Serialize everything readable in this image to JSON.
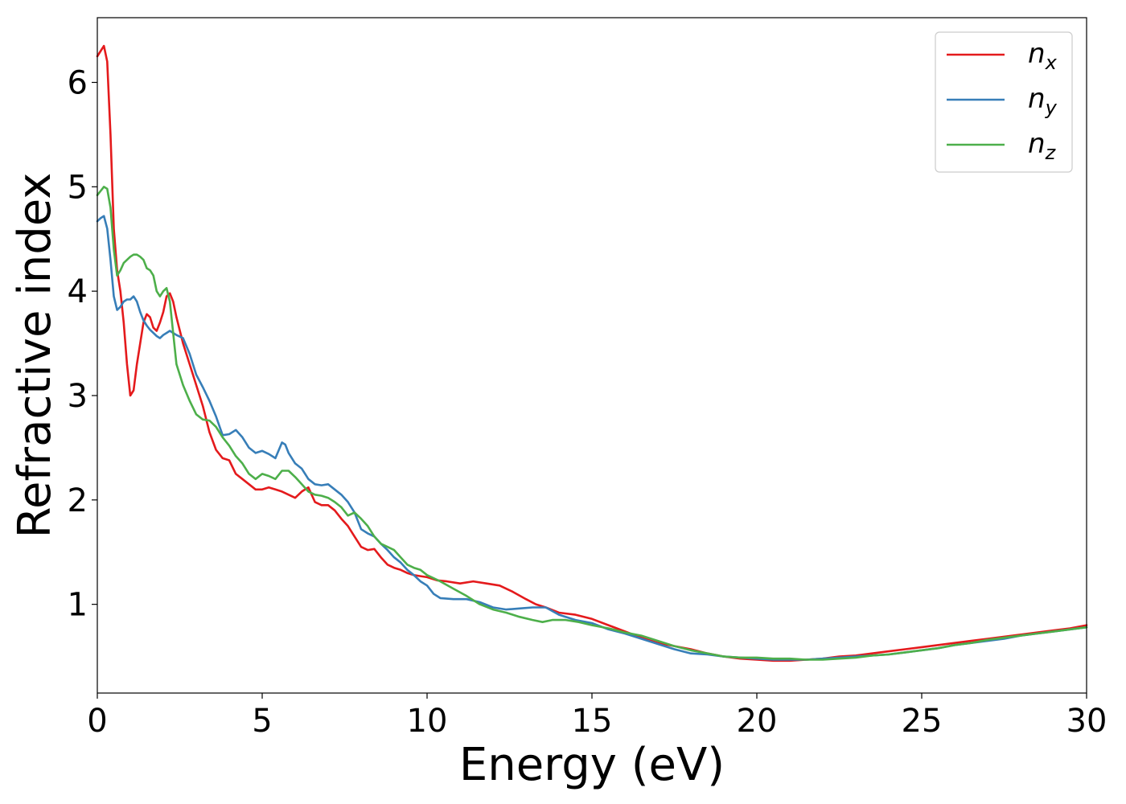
{
  "chart_data": {
    "type": "line",
    "xlabel": "Energy (eV)",
    "ylabel": "Refractive index",
    "xlim": [
      0,
      30
    ],
    "ylim": [
      0.15,
      6.62
    ],
    "xticks": [
      0,
      5,
      10,
      15,
      20,
      25,
      30
    ],
    "yticks": [
      1,
      2,
      3,
      4,
      5,
      6
    ],
    "grid": false,
    "legend_position": "top-right",
    "series": [
      {
        "name_base": "n",
        "name_sub": "x",
        "color": "#e41a1c",
        "points": [
          [
            0,
            6.25
          ],
          [
            0.1,
            6.3
          ],
          [
            0.2,
            6.35
          ],
          [
            0.3,
            6.2
          ],
          [
            0.4,
            5.5
          ],
          [
            0.5,
            4.6
          ],
          [
            0.6,
            4.2
          ],
          [
            0.7,
            4.0
          ],
          [
            0.8,
            3.7
          ],
          [
            0.9,
            3.3
          ],
          [
            1.0,
            3.0
          ],
          [
            1.1,
            3.05
          ],
          [
            1.2,
            3.3
          ],
          [
            1.3,
            3.5
          ],
          [
            1.4,
            3.7
          ],
          [
            1.5,
            3.78
          ],
          [
            1.6,
            3.75
          ],
          [
            1.7,
            3.65
          ],
          [
            1.8,
            3.62
          ],
          [
            1.9,
            3.7
          ],
          [
            2.0,
            3.8
          ],
          [
            2.1,
            3.95
          ],
          [
            2.2,
            3.98
          ],
          [
            2.3,
            3.9
          ],
          [
            2.4,
            3.75
          ],
          [
            2.6,
            3.5
          ],
          [
            2.8,
            3.3
          ],
          [
            3.0,
            3.1
          ],
          [
            3.2,
            2.9
          ],
          [
            3.4,
            2.65
          ],
          [
            3.6,
            2.48
          ],
          [
            3.8,
            2.4
          ],
          [
            4.0,
            2.38
          ],
          [
            4.2,
            2.25
          ],
          [
            4.4,
            2.2
          ],
          [
            4.6,
            2.15
          ],
          [
            4.8,
            2.1
          ],
          [
            5.0,
            2.1
          ],
          [
            5.2,
            2.12
          ],
          [
            5.4,
            2.1
          ],
          [
            5.6,
            2.08
          ],
          [
            5.8,
            2.05
          ],
          [
            6.0,
            2.02
          ],
          [
            6.2,
            2.08
          ],
          [
            6.4,
            2.12
          ],
          [
            6.6,
            1.98
          ],
          [
            6.8,
            1.95
          ],
          [
            7.0,
            1.95
          ],
          [
            7.2,
            1.9
          ],
          [
            7.4,
            1.82
          ],
          [
            7.6,
            1.75
          ],
          [
            7.8,
            1.65
          ],
          [
            8.0,
            1.55
          ],
          [
            8.2,
            1.52
          ],
          [
            8.4,
            1.53
          ],
          [
            8.6,
            1.45
          ],
          [
            8.8,
            1.38
          ],
          [
            9.0,
            1.35
          ],
          [
            9.2,
            1.33
          ],
          [
            9.4,
            1.3
          ],
          [
            9.6,
            1.28
          ],
          [
            9.8,
            1.27
          ],
          [
            10.0,
            1.26
          ],
          [
            10.3,
            1.23
          ],
          [
            10.6,
            1.22
          ],
          [
            11.0,
            1.2
          ],
          [
            11.4,
            1.22
          ],
          [
            11.8,
            1.2
          ],
          [
            12.2,
            1.18
          ],
          [
            12.6,
            1.12
          ],
          [
            13.0,
            1.05
          ],
          [
            13.3,
            1.0
          ],
          [
            13.6,
            0.97
          ],
          [
            14.0,
            0.92
          ],
          [
            14.5,
            0.9
          ],
          [
            15.0,
            0.86
          ],
          [
            15.5,
            0.8
          ],
          [
            16.0,
            0.74
          ],
          [
            16.5,
            0.68
          ],
          [
            17.0,
            0.63
          ],
          [
            17.5,
            0.6
          ],
          [
            18.0,
            0.57
          ],
          [
            18.5,
            0.53
          ],
          [
            19.0,
            0.5
          ],
          [
            19.5,
            0.48
          ],
          [
            20.0,
            0.47
          ],
          [
            20.5,
            0.46
          ],
          [
            21.0,
            0.46
          ],
          [
            21.5,
            0.47
          ],
          [
            22.0,
            0.48
          ],
          [
            22.5,
            0.5
          ],
          [
            23.0,
            0.51
          ],
          [
            23.5,
            0.53
          ],
          [
            24.0,
            0.55
          ],
          [
            24.5,
            0.57
          ],
          [
            25.0,
            0.59
          ],
          [
            25.5,
            0.61
          ],
          [
            26.0,
            0.63
          ],
          [
            26.5,
            0.65
          ],
          [
            27.0,
            0.67
          ],
          [
            27.5,
            0.69
          ],
          [
            28.0,
            0.71
          ],
          [
            28.5,
            0.73
          ],
          [
            29.0,
            0.75
          ],
          [
            29.5,
            0.77
          ],
          [
            30.0,
            0.8
          ]
        ]
      },
      {
        "name_base": "n",
        "name_sub": "y",
        "color": "#377eb8",
        "points": [
          [
            0,
            4.67
          ],
          [
            0.1,
            4.7
          ],
          [
            0.2,
            4.72
          ],
          [
            0.3,
            4.6
          ],
          [
            0.4,
            4.3
          ],
          [
            0.5,
            3.95
          ],
          [
            0.6,
            3.82
          ],
          [
            0.7,
            3.85
          ],
          [
            0.8,
            3.9
          ],
          [
            0.9,
            3.92
          ],
          [
            1.0,
            3.92
          ],
          [
            1.1,
            3.95
          ],
          [
            1.2,
            3.9
          ],
          [
            1.3,
            3.8
          ],
          [
            1.4,
            3.72
          ],
          [
            1.5,
            3.67
          ],
          [
            1.6,
            3.63
          ],
          [
            1.7,
            3.6
          ],
          [
            1.8,
            3.57
          ],
          [
            1.9,
            3.55
          ],
          [
            2.0,
            3.58
          ],
          [
            2.1,
            3.6
          ],
          [
            2.2,
            3.62
          ],
          [
            2.3,
            3.6
          ],
          [
            2.4,
            3.58
          ],
          [
            2.6,
            3.55
          ],
          [
            2.8,
            3.4
          ],
          [
            3.0,
            3.2
          ],
          [
            3.2,
            3.08
          ],
          [
            3.4,
            2.95
          ],
          [
            3.6,
            2.8
          ],
          [
            3.8,
            2.62
          ],
          [
            4.0,
            2.63
          ],
          [
            4.2,
            2.67
          ],
          [
            4.4,
            2.6
          ],
          [
            4.6,
            2.5
          ],
          [
            4.8,
            2.45
          ],
          [
            5.0,
            2.47
          ],
          [
            5.2,
            2.44
          ],
          [
            5.4,
            2.4
          ],
          [
            5.6,
            2.55
          ],
          [
            5.7,
            2.53
          ],
          [
            5.8,
            2.45
          ],
          [
            6.0,
            2.35
          ],
          [
            6.2,
            2.3
          ],
          [
            6.4,
            2.2
          ],
          [
            6.6,
            2.15
          ],
          [
            6.8,
            2.14
          ],
          [
            7.0,
            2.15
          ],
          [
            7.2,
            2.1
          ],
          [
            7.4,
            2.05
          ],
          [
            7.6,
            1.98
          ],
          [
            7.8,
            1.88
          ],
          [
            8.0,
            1.72
          ],
          [
            8.2,
            1.68
          ],
          [
            8.4,
            1.65
          ],
          [
            8.6,
            1.58
          ],
          [
            8.8,
            1.52
          ],
          [
            9.0,
            1.45
          ],
          [
            9.2,
            1.4
          ],
          [
            9.4,
            1.33
          ],
          [
            9.6,
            1.28
          ],
          [
            9.8,
            1.22
          ],
          [
            10.0,
            1.18
          ],
          [
            10.2,
            1.1
          ],
          [
            10.4,
            1.06
          ],
          [
            10.8,
            1.05
          ],
          [
            11.2,
            1.05
          ],
          [
            11.6,
            1.02
          ],
          [
            12.0,
            0.97
          ],
          [
            12.4,
            0.95
          ],
          [
            12.8,
            0.96
          ],
          [
            13.2,
            0.97
          ],
          [
            13.6,
            0.97
          ],
          [
            14.0,
            0.9
          ],
          [
            14.5,
            0.85
          ],
          [
            15.0,
            0.82
          ],
          [
            15.5,
            0.76
          ],
          [
            16.0,
            0.72
          ],
          [
            16.5,
            0.67
          ],
          [
            17.0,
            0.62
          ],
          [
            17.5,
            0.57
          ],
          [
            18.0,
            0.53
          ],
          [
            18.5,
            0.52
          ],
          [
            19.0,
            0.5
          ],
          [
            19.5,
            0.49
          ],
          [
            20.0,
            0.48
          ],
          [
            20.5,
            0.47
          ],
          [
            21.0,
            0.47
          ],
          [
            21.5,
            0.47
          ],
          [
            22.0,
            0.48
          ],
          [
            22.5,
            0.49
          ],
          [
            23.0,
            0.5
          ],
          [
            23.5,
            0.51
          ],
          [
            24.0,
            0.52
          ],
          [
            24.5,
            0.54
          ],
          [
            25.0,
            0.56
          ],
          [
            25.5,
            0.58
          ],
          [
            26.0,
            0.61
          ],
          [
            26.5,
            0.63
          ],
          [
            27.0,
            0.65
          ],
          [
            27.5,
            0.67
          ],
          [
            28.0,
            0.7
          ],
          [
            28.5,
            0.72
          ],
          [
            29.0,
            0.74
          ],
          [
            29.5,
            0.76
          ],
          [
            30.0,
            0.78
          ]
        ]
      },
      {
        "name_base": "n",
        "name_sub": "z",
        "color": "#4daf4a",
        "points": [
          [
            0,
            4.92
          ],
          [
            0.1,
            4.96
          ],
          [
            0.2,
            5.0
          ],
          [
            0.3,
            4.98
          ],
          [
            0.4,
            4.8
          ],
          [
            0.5,
            4.4
          ],
          [
            0.6,
            4.15
          ],
          [
            0.7,
            4.2
          ],
          [
            0.8,
            4.27
          ],
          [
            0.9,
            4.3
          ],
          [
            1.0,
            4.33
          ],
          [
            1.1,
            4.35
          ],
          [
            1.2,
            4.35
          ],
          [
            1.3,
            4.33
          ],
          [
            1.4,
            4.3
          ],
          [
            1.5,
            4.22
          ],
          [
            1.6,
            4.2
          ],
          [
            1.7,
            4.15
          ],
          [
            1.8,
            4.0
          ],
          [
            1.9,
            3.95
          ],
          [
            2.0,
            4.0
          ],
          [
            2.1,
            4.03
          ],
          [
            2.2,
            3.9
          ],
          [
            2.3,
            3.6
          ],
          [
            2.4,
            3.3
          ],
          [
            2.6,
            3.1
          ],
          [
            2.8,
            2.95
          ],
          [
            3.0,
            2.82
          ],
          [
            3.2,
            2.77
          ],
          [
            3.4,
            2.76
          ],
          [
            3.6,
            2.7
          ],
          [
            3.8,
            2.6
          ],
          [
            4.0,
            2.52
          ],
          [
            4.2,
            2.42
          ],
          [
            4.4,
            2.35
          ],
          [
            4.6,
            2.25
          ],
          [
            4.8,
            2.2
          ],
          [
            5.0,
            2.25
          ],
          [
            5.2,
            2.23
          ],
          [
            5.4,
            2.2
          ],
          [
            5.6,
            2.28
          ],
          [
            5.8,
            2.28
          ],
          [
            6.0,
            2.22
          ],
          [
            6.2,
            2.15
          ],
          [
            6.4,
            2.08
          ],
          [
            6.6,
            2.05
          ],
          [
            6.8,
            2.04
          ],
          [
            7.0,
            2.02
          ],
          [
            7.2,
            1.98
          ],
          [
            7.4,
            1.93
          ],
          [
            7.6,
            1.85
          ],
          [
            7.8,
            1.88
          ],
          [
            8.0,
            1.82
          ],
          [
            8.2,
            1.75
          ],
          [
            8.4,
            1.65
          ],
          [
            8.6,
            1.58
          ],
          [
            8.8,
            1.55
          ],
          [
            9.0,
            1.52
          ],
          [
            9.2,
            1.45
          ],
          [
            9.4,
            1.38
          ],
          [
            9.6,
            1.35
          ],
          [
            9.8,
            1.33
          ],
          [
            10.0,
            1.28
          ],
          [
            10.4,
            1.22
          ],
          [
            10.8,
            1.15
          ],
          [
            11.2,
            1.08
          ],
          [
            11.6,
            1.0
          ],
          [
            12.0,
            0.95
          ],
          [
            12.4,
            0.92
          ],
          [
            12.8,
            0.88
          ],
          [
            13.2,
            0.85
          ],
          [
            13.5,
            0.83
          ],
          [
            13.8,
            0.85
          ],
          [
            14.2,
            0.85
          ],
          [
            14.6,
            0.83
          ],
          [
            15.0,
            0.8
          ],
          [
            15.5,
            0.77
          ],
          [
            16.0,
            0.73
          ],
          [
            16.5,
            0.7
          ],
          [
            17.0,
            0.65
          ],
          [
            17.5,
            0.6
          ],
          [
            18.0,
            0.56
          ],
          [
            18.5,
            0.53
          ],
          [
            19.0,
            0.5
          ],
          [
            19.5,
            0.49
          ],
          [
            20.0,
            0.49
          ],
          [
            20.5,
            0.48
          ],
          [
            21.0,
            0.48
          ],
          [
            21.5,
            0.47
          ],
          [
            22.0,
            0.47
          ],
          [
            22.5,
            0.48
          ],
          [
            23.0,
            0.49
          ],
          [
            23.5,
            0.51
          ],
          [
            24.0,
            0.52
          ],
          [
            24.5,
            0.54
          ],
          [
            25.0,
            0.56
          ],
          [
            25.5,
            0.58
          ],
          [
            26.0,
            0.61
          ],
          [
            26.5,
            0.63
          ],
          [
            27.0,
            0.66
          ],
          [
            27.5,
            0.68
          ],
          [
            28.0,
            0.7
          ],
          [
            28.5,
            0.72
          ],
          [
            29.0,
            0.74
          ],
          [
            29.5,
            0.76
          ],
          [
            30.0,
            0.78
          ]
        ]
      }
    ]
  }
}
